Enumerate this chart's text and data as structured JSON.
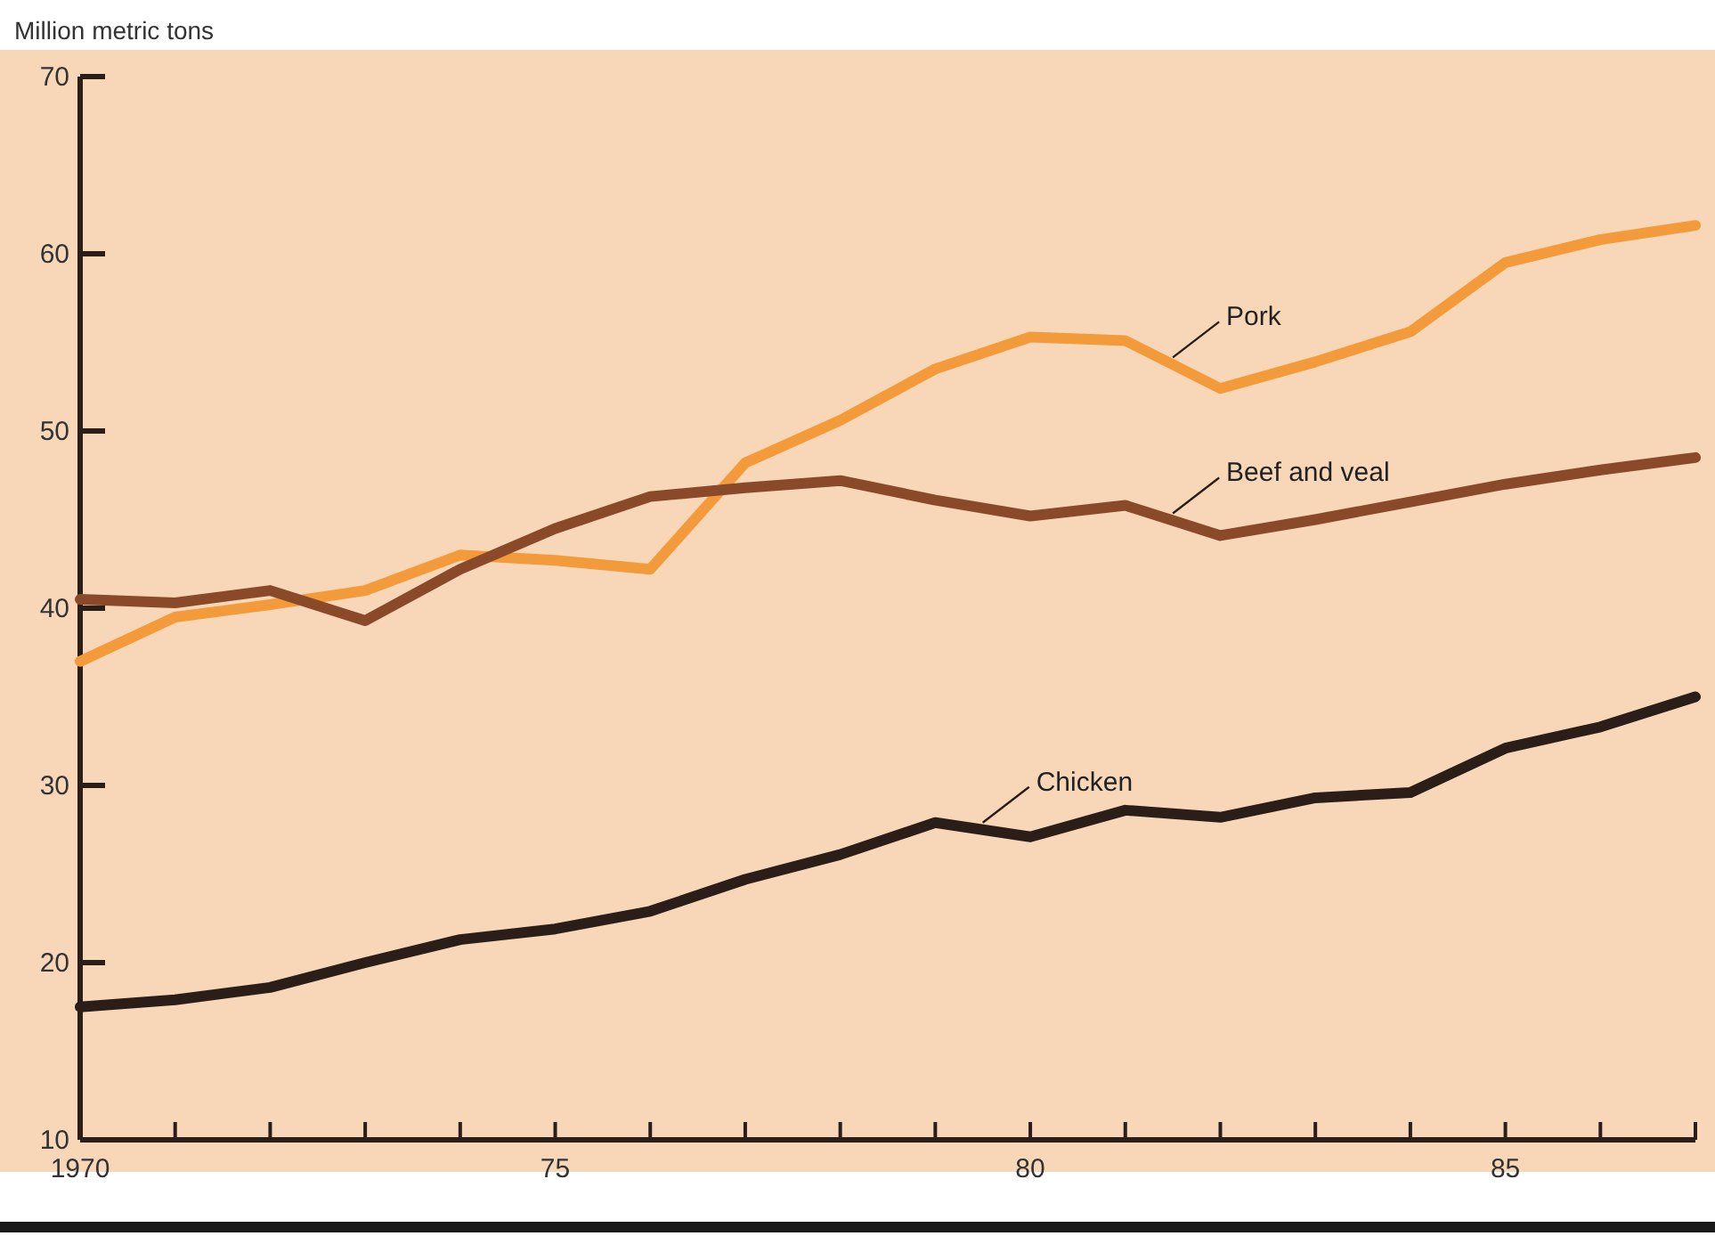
{
  "chart_data": {
    "type": "line",
    "ylabel": "Million metric tons",
    "x": [
      1970,
      1971,
      1972,
      1973,
      1974,
      1975,
      1976,
      1977,
      1978,
      1979,
      1980,
      1981,
      1982,
      1983,
      1984,
      1985,
      1986,
      1987
    ],
    "series": [
      {
        "name": "Pork",
        "color": "#f39a3a",
        "values": [
          37,
          39.5,
          40.2,
          41,
          43,
          42.7,
          42.2,
          48.2,
          50.6,
          53.5,
          55.3,
          55.1,
          52.4,
          53.9,
          55.6,
          59.5,
          60.8,
          61.6
        ]
      },
      {
        "name": "Beef and veal",
        "color": "#8a4a2a",
        "values": [
          40.5,
          40.3,
          41,
          39.3,
          42.2,
          44.5,
          46.3,
          46.8,
          47.2,
          46.1,
          45.2,
          45.8,
          44.1,
          45,
          46,
          47,
          47.8,
          48.5
        ]
      },
      {
        "name": "Chicken",
        "color": "#2b1d18",
        "values": [
          17.5,
          17.9,
          18.6,
          20,
          21.3,
          21.9,
          22.9,
          24.7,
          26.1,
          27.9,
          27.1,
          28.6,
          28.2,
          29.3,
          29.6,
          32.1,
          33.3,
          35
        ]
      }
    ],
    "xlim": [
      1970,
      1987
    ],
    "xticks": [
      {
        "value": 1970,
        "label": "1970"
      },
      {
        "value": 1971,
        "label": null
      },
      {
        "value": 1972,
        "label": null
      },
      {
        "value": 1973,
        "label": null
      },
      {
        "value": 1974,
        "label": null
      },
      {
        "value": 1975,
        "label": "75"
      },
      {
        "value": 1976,
        "label": null
      },
      {
        "value": 1977,
        "label": null
      },
      {
        "value": 1978,
        "label": null
      },
      {
        "value": 1979,
        "label": null
      },
      {
        "value": 1980,
        "label": "80"
      },
      {
        "value": 1981,
        "label": null
      },
      {
        "value": 1982,
        "label": null
      },
      {
        "value": 1983,
        "label": null
      },
      {
        "value": 1984,
        "label": null
      },
      {
        "value": 1985,
        "label": "85"
      },
      {
        "value": 1986,
        "label": null
      },
      {
        "value": 1987,
        "label": null
      }
    ],
    "ylim": [
      10,
      70
    ],
    "yticks": [
      10,
      20,
      30,
      40,
      50,
      60,
      70
    ],
    "grid": false,
    "marker": "none",
    "line_style": "solid"
  }
}
